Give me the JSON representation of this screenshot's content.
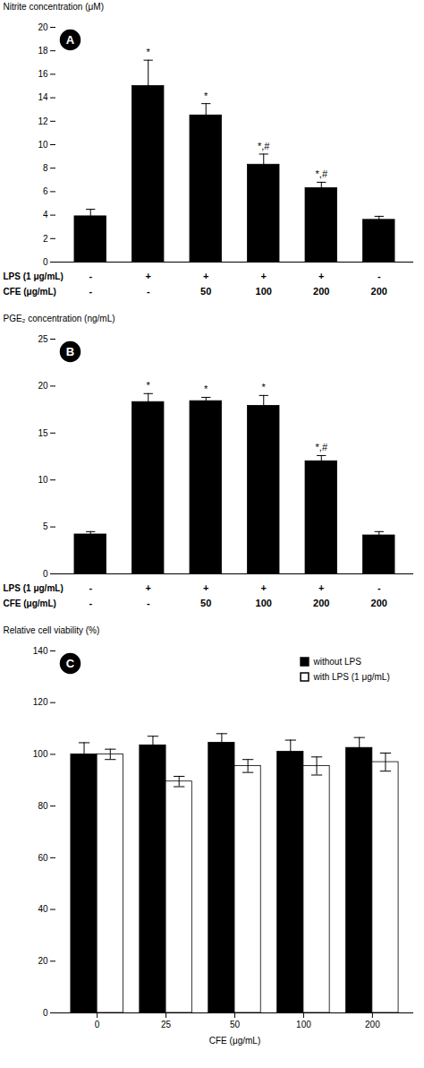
{
  "chart_data": [
    {
      "type": "bar",
      "title": "A",
      "categories": [
        null,
        null,
        null,
        null,
        null,
        null
      ],
      "tick_labels": "y",
      "values": [
        3.9,
        15.0,
        12.5,
        8.3,
        6.3,
        3.6
      ],
      "errors": [
        0.6,
        2.2,
        1.0,
        0.9,
        0.5,
        0.3
      ],
      "annotations": [
        null,
        "*",
        "*",
        "*,#",
        "*,#",
        null
      ],
      "ylabel": "Nitrite concentration (μM)",
      "ylim": [
        0,
        20
      ],
      "yticks": [
        0,
        2,
        4,
        6,
        8,
        10,
        12,
        14,
        16,
        18,
        20
      ],
      "x_rows": [
        {
          "label": "LPS (1 μg/mL)",
          "values": [
            "-",
            "+",
            "+",
            "+",
            "+",
            "-"
          ]
        },
        {
          "label": "CFE (μg/mL)",
          "values": [
            "-",
            "-",
            "50",
            "100",
            "200",
            "200"
          ]
        }
      ],
      "color": "#000000",
      "grid": false
    },
    {
      "type": "bar",
      "title": "B",
      "categories": [
        null,
        null,
        null,
        null,
        null,
        null
      ],
      "tick_labels": "y",
      "values": [
        4.2,
        18.3,
        18.4,
        17.9,
        12.0,
        4.1
      ],
      "errors": [
        0.3,
        0.9,
        0.4,
        1.1,
        0.6,
        0.4
      ],
      "annotations": [
        null,
        "*",
        "*",
        "*",
        "*,#",
        null
      ],
      "ylabel": "PGE₂ concentration (ng/mL)",
      "ylim": [
        0,
        25
      ],
      "yticks": [
        0,
        5,
        10,
        15,
        20,
        25
      ],
      "x_rows": [
        {
          "label": "LPS (1 μg/mL)",
          "values": [
            "-",
            "+",
            "+",
            "+",
            "+",
            "-"
          ]
        },
        {
          "label": "CFE (μg/mL)",
          "values": [
            "-",
            "-",
            "50",
            "100",
            "200",
            "200"
          ]
        }
      ],
      "color": "#000000",
      "grid": false
    },
    {
      "type": "bar",
      "title": "C",
      "categories": [
        "0",
        "25",
        "50",
        "100",
        "200"
      ],
      "series": [
        {
          "name": "without LPS",
          "color": "#000000",
          "values": [
            100.0,
            103.5,
            104.5,
            101.0,
            102.5
          ],
          "errors": [
            4.5,
            3.5,
            3.5,
            4.5,
            4.0
          ]
        },
        {
          "name": "with LPS (1 μg/mL)",
          "color": "#ffffff",
          "values": [
            100.0,
            89.5,
            95.5,
            95.5,
            97.0
          ],
          "errors": [
            2.0,
            2.0,
            2.5,
            3.5,
            3.5
          ]
        }
      ],
      "xlabel": "CFE (μg/mL)",
      "ylabel": "Relative cell viability (%)",
      "ylim": [
        0,
        140
      ],
      "yticks": [
        0,
        20,
        40,
        60,
        80,
        100,
        120,
        140
      ],
      "legend": "upper right",
      "grid": false
    }
  ]
}
